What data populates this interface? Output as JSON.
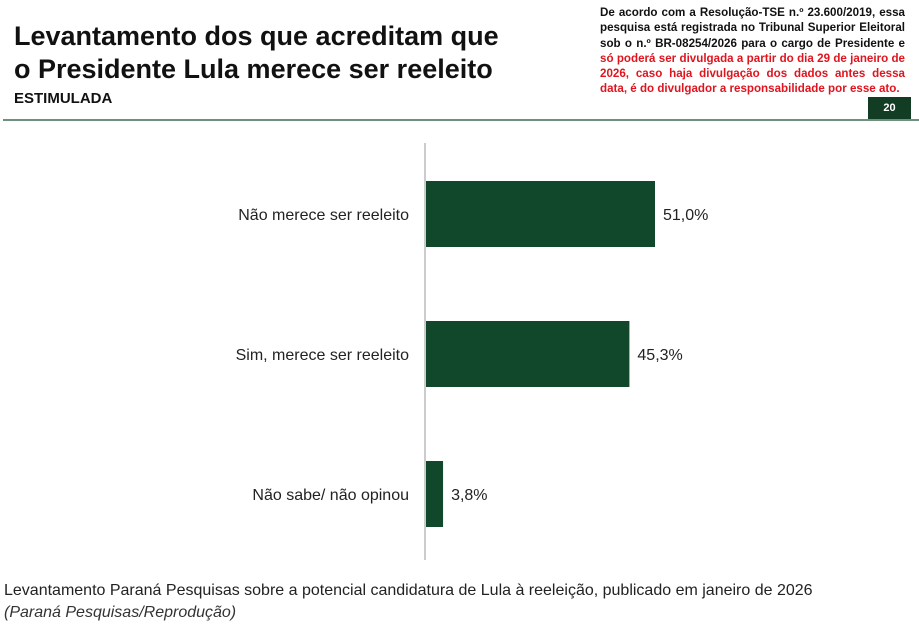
{
  "header": {
    "title_line1": "Levantamento dos que acreditam que",
    "title_line2": "o Presidente Lula merece ser reeleito",
    "subtitle": "ESTIMULADA",
    "notice_black": "De acordo com a Resolução-TSE n.º 23.600/2019, essa pesquisa está registrada no Tribunal Superior Eleitoral sob o n.º BR-08254/2026 para o cargo de Presidente e ",
    "notice_red": "só poderá ser divulgada a partir do dia 29 de janeiro de 2026, caso haja divulgação dos dados antes dessa data, é do divulgador a responsabilidade por esse ato.",
    "page_number": "20"
  },
  "chart_data": {
    "type": "bar",
    "orientation": "horizontal",
    "categories": [
      "Não merece ser reeleito",
      "Sim, merece ser reeleito",
      "Não sabe/ não opinou"
    ],
    "values": [
      51.0,
      45.3,
      3.8
    ],
    "labels": [
      "51,0%",
      "45,3%",
      "3,8%"
    ],
    "xlim": [
      0,
      100
    ],
    "bar_color": "#11472a",
    "grid": false
  },
  "caption": {
    "text": "Levantamento Paraná Pesquisas sobre a potencial candidatura de Lula à reeleição, publicado em janeiro de 2026",
    "credit": "(Paraná Pesquisas/Reprodução)"
  }
}
